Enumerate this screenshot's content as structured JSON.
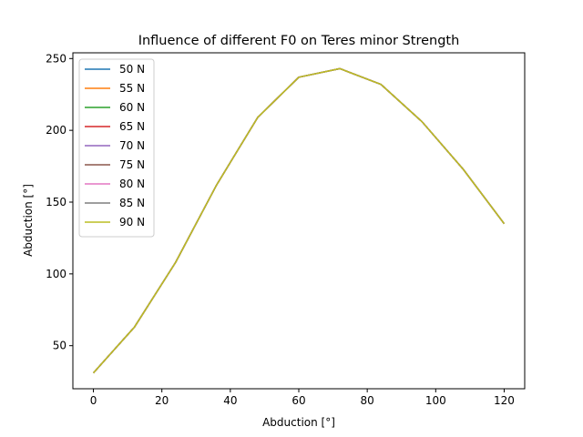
{
  "chart_data": {
    "type": "line",
    "title": "Influence of different F0 on Teres minor Strength",
    "xlabel": "Abduction [°]",
    "ylabel": "Abduction [°]",
    "xlim": [
      -6,
      126
    ],
    "ylim": [
      20,
      254
    ],
    "xticks": [
      0,
      20,
      40,
      60,
      80,
      100,
      120
    ],
    "yticks": [
      50,
      100,
      150,
      200,
      250
    ],
    "grid": false,
    "legend_position": "upper-left",
    "x": [
      0,
      12,
      24,
      36,
      48,
      60,
      72,
      84,
      96,
      108,
      120
    ],
    "series": [
      {
        "name": "50 N",
        "color": "#1f77b4",
        "values": [
          31,
          63,
          108,
          162,
          209,
          237,
          243,
          232,
          206,
          173,
          135
        ]
      },
      {
        "name": "55 N",
        "color": "#ff7f0e",
        "values": [
          31,
          63,
          108,
          162,
          209,
          237,
          243,
          232,
          206,
          173,
          135
        ]
      },
      {
        "name": "60 N",
        "color": "#2ca02c",
        "values": [
          31,
          63,
          108,
          162,
          209,
          237,
          243,
          232,
          206,
          173,
          135
        ]
      },
      {
        "name": "65 N",
        "color": "#d62728",
        "values": [
          31,
          63,
          108,
          162,
          209,
          237,
          243,
          232,
          206,
          173,
          135
        ]
      },
      {
        "name": "70 N",
        "color": "#9467bd",
        "values": [
          31,
          63,
          108,
          162,
          209,
          237,
          243,
          232,
          206,
          173,
          135
        ]
      },
      {
        "name": "75 N",
        "color": "#8c564b",
        "values": [
          31,
          63,
          108,
          162,
          209,
          237,
          243,
          232,
          206,
          173,
          135
        ]
      },
      {
        "name": "80 N",
        "color": "#e377c2",
        "values": [
          31,
          63,
          108,
          162,
          209,
          237,
          243,
          232,
          206,
          173,
          135
        ]
      },
      {
        "name": "85 N",
        "color": "#7f7f7f",
        "values": [
          31,
          63,
          108,
          162,
          209,
          237,
          243,
          232,
          206,
          173,
          135
        ]
      },
      {
        "name": "90 N",
        "color": "#bcbd22",
        "values": [
          31,
          63,
          108,
          162,
          209,
          237,
          243,
          232,
          206,
          173,
          135
        ]
      }
    ]
  }
}
